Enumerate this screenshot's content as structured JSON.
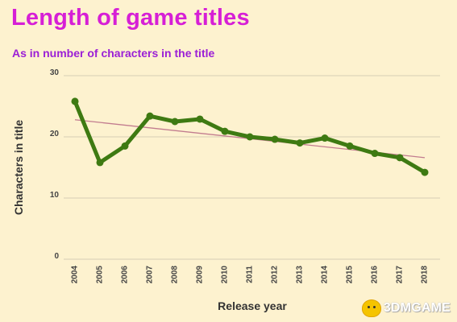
{
  "watermark": {
    "text": "3DMGAME",
    "icon": "mascot-logo-icon"
  },
  "chart_data": {
    "type": "line",
    "title": "Length of game titles",
    "subtitle": "As in number of characters in the title",
    "xlabel": "Release year",
    "ylabel": "Characters in title",
    "categories": [
      "2004",
      "2005",
      "2006",
      "2007",
      "2008",
      "2009",
      "2010",
      "2011",
      "2012",
      "2013",
      "2014",
      "2015",
      "2016",
      "2017",
      "2018"
    ],
    "series": [
      {
        "values": [
          25.8,
          15.8,
          18.5,
          23.4,
          22.5,
          22.9,
          20.9,
          20.0,
          19.6,
          19.0,
          19.8,
          18.5,
          17.3,
          16.6,
          14.2
        ],
        "color": "#3e7a12"
      }
    ],
    "trendline": {
      "type": "linear",
      "start": 22.8,
      "end": 16.6,
      "color": "#c27c8f"
    },
    "yticks": [
      "0",
      "10",
      "20",
      "30"
    ],
    "ylim": [
      0,
      30
    ],
    "grid": true,
    "legend": "none",
    "colors": {
      "background": "#fdf2cf",
      "title": "#d61fd6",
      "subtitle": "#9b1fd6",
      "gridline": "#d6ceb6",
      "axis_text": "#444444"
    }
  }
}
